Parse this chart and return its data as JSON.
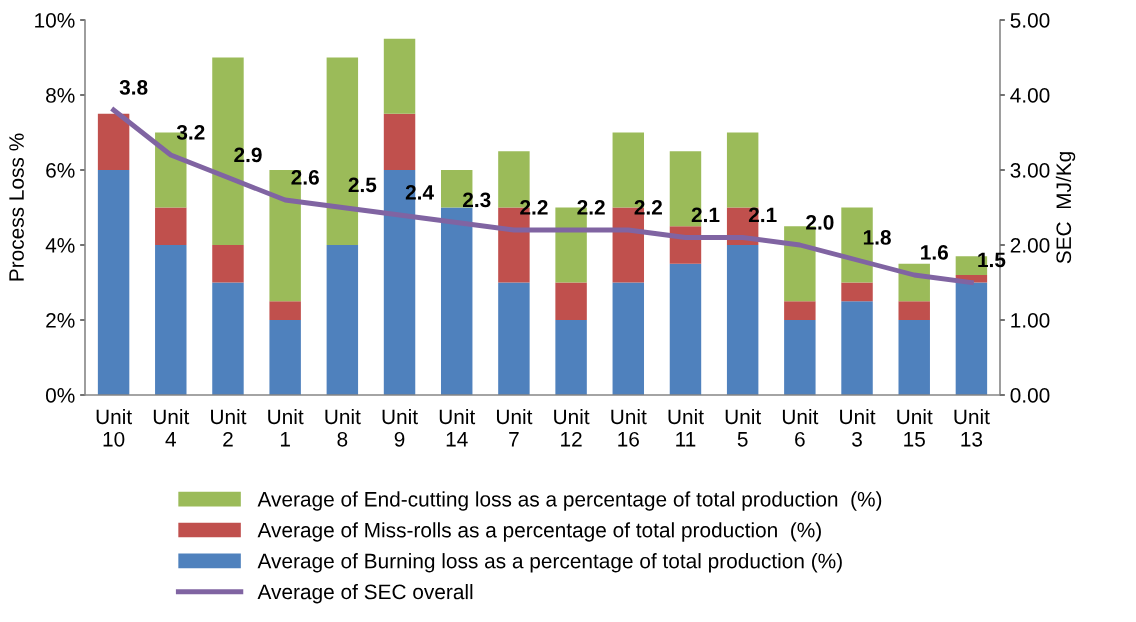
{
  "chart_data": {
    "type": "bar",
    "stacked": true,
    "ylabel": "Process Loss %",
    "y2label": "SEC  MJ/Kg",
    "categories": [
      "Unit 10",
      "Unit 4",
      "Unit 2",
      "Unit 1",
      "Unit 8",
      "Unit 9",
      "Unit 14",
      "Unit 7",
      "Unit 12",
      "Unit 16",
      "Unit 11",
      "Unit 5",
      "Unit 6",
      "Unit 3",
      "Unit 15",
      "Unit 13"
    ],
    "series": [
      {
        "name": "Average of Burning loss as a percentage of total production (%)",
        "color": "#4f81bd",
        "values": [
          6.0,
          4.0,
          3.0,
          2.0,
          4.0,
          6.0,
          5.0,
          3.0,
          2.0,
          3.0,
          3.5,
          4.0,
          2.0,
          2.5,
          2.0,
          3.0
        ]
      },
      {
        "name": "Average of Miss-rolls as a percentage of total production  (%)",
        "color": "#c0504d",
        "values": [
          1.5,
          1.0,
          1.0,
          0.5,
          0,
          1.5,
          0,
          2.0,
          1.0,
          2.0,
          1.0,
          1.0,
          0.5,
          0.5,
          0.5,
          0.2
        ]
      },
      {
        "name": "Average of End-cutting loss as a percentage of total production  (%)",
        "color": "#9bbb59",
        "values": [
          0,
          2.0,
          5.0,
          3.5,
          5.0,
          2.0,
          1.0,
          1.5,
          2.0,
          2.0,
          2.0,
          2.0,
          2.0,
          2.0,
          1.0,
          0.5
        ]
      },
      {
        "name": "Average of SEC overall",
        "type": "line",
        "axis": "y2",
        "color": "#8064a2",
        "marker": "none",
        "values": [
          3.8,
          3.2,
          2.9,
          2.6,
          2.5,
          2.4,
          2.3,
          2.2,
          2.2,
          2.2,
          2.1,
          2.1,
          2.0,
          1.8,
          1.6,
          1.5
        ],
        "value_labels": [
          "3.8",
          "3.2",
          "2.9",
          "2.6",
          "2.5",
          "2.4",
          "2.3",
          "2.2",
          "2.2",
          "2.2",
          "2.1",
          "2.1",
          "2.0",
          "1.8",
          "1.6",
          "1.5"
        ]
      }
    ],
    "ylim": [
      0,
      10
    ],
    "yticks": [
      {
        "value": 0,
        "label": "0%"
      },
      {
        "value": 2,
        "label": "2%"
      },
      {
        "value": 4,
        "label": "4%"
      },
      {
        "value": 6,
        "label": "6%"
      },
      {
        "value": 8,
        "label": "8%"
      },
      {
        "value": 10,
        "label": "10%"
      }
    ],
    "y2lim": [
      0,
      5
    ],
    "y2ticks": [
      {
        "value": 0,
        "label": "0.00"
      },
      {
        "value": 1,
        "label": "1.00"
      },
      {
        "value": 2,
        "label": "2.00"
      },
      {
        "value": 3,
        "label": "3.00"
      },
      {
        "value": 4,
        "label": "4.00"
      },
      {
        "value": 5,
        "label": "5.00"
      }
    ],
    "grid": false,
    "legend": "bottom"
  }
}
